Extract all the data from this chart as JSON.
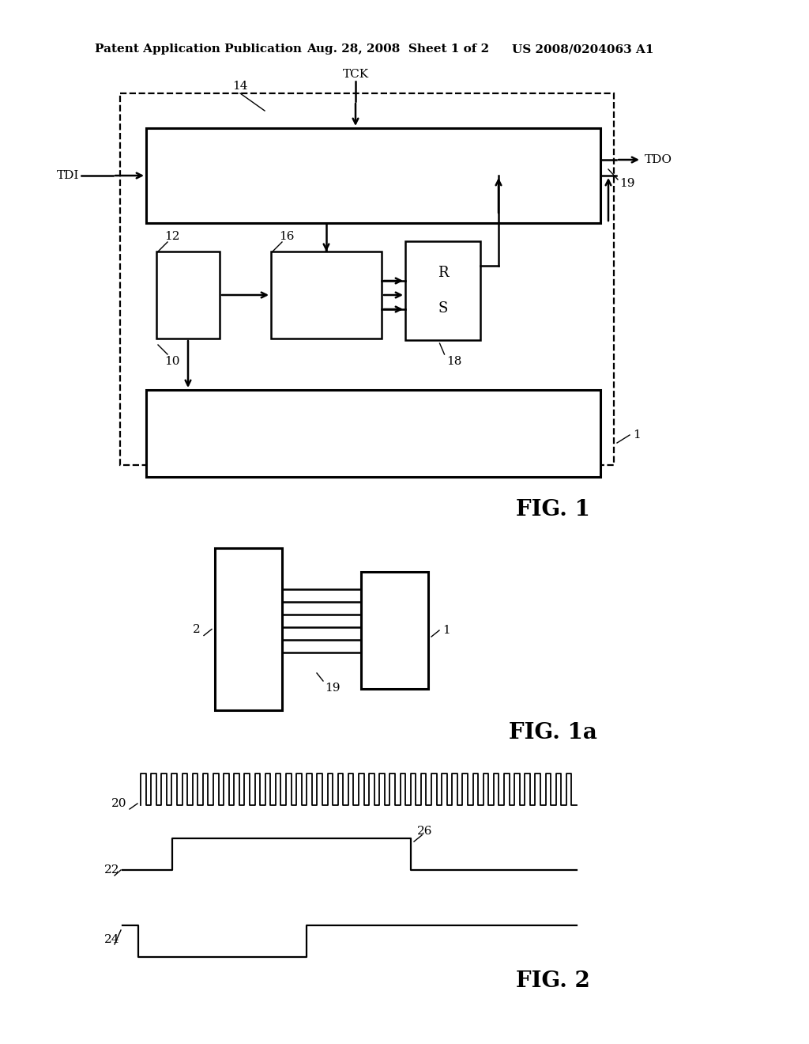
{
  "header_left": "Patent Application Publication",
  "header_mid": "Aug. 28, 2008  Sheet 1 of 2",
  "header_right": "US 2008/0204063 A1",
  "fig1_label": "FIG. 1",
  "fig1a_label": "FIG. 1a",
  "fig2_label": "FIG. 2",
  "bg_color": "#ffffff",
  "line_color": "#000000",
  "header_fontsize": 11,
  "label_fontsize": 11,
  "fig_label_fontsize": 20
}
